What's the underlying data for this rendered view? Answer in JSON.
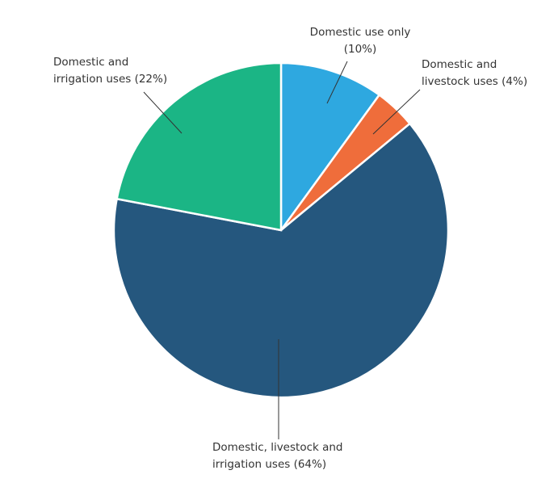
{
  "chart_data": {
    "type": "pie",
    "categories": [
      "Domestic use only (10%)",
      "Domestic and livestock uses (4%)",
      "Domestic, livestock and irrigation uses (64%)",
      "Domestic and irrigation uses (22%)"
    ],
    "values": [
      10,
      4,
      64,
      22
    ],
    "colors": [
      "#2ea8e0",
      "#ef6d3b",
      "#25577e",
      "#1bb585"
    ]
  }
}
